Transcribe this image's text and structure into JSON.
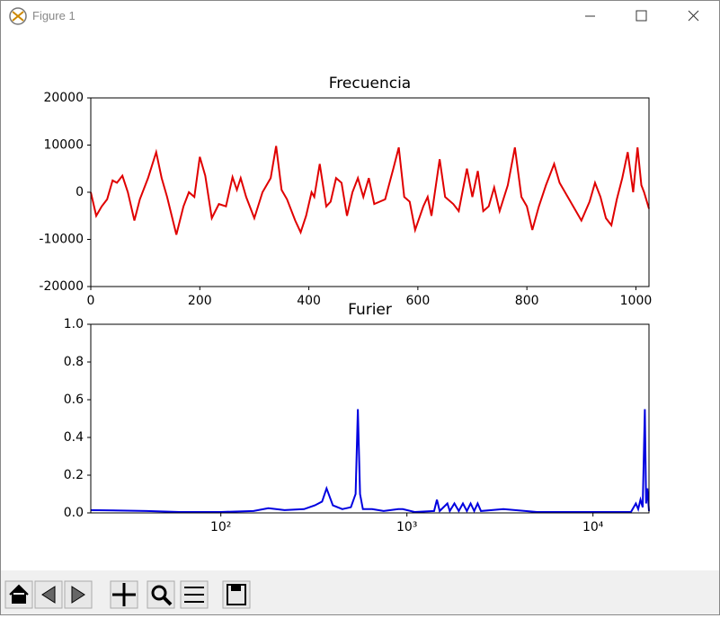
{
  "window": {
    "title": "Figure 1"
  },
  "chart_data": [
    {
      "type": "line",
      "title": "Frecuencia",
      "color": "#e00000",
      "x": [
        0,
        10,
        20,
        30,
        40,
        48,
        58,
        68,
        80,
        90,
        105,
        120,
        130,
        140,
        157,
        170,
        180,
        190,
        200,
        210,
        222,
        235,
        248,
        260,
        268,
        275,
        285,
        300,
        315,
        330,
        340,
        350,
        360,
        375,
        385,
        395,
        405,
        410,
        420,
        432,
        440,
        450,
        460,
        470,
        480,
        490,
        500,
        510,
        520,
        540,
        555,
        565,
        575,
        585,
        595,
        610,
        618,
        625,
        640,
        650,
        665,
        675,
        690,
        700,
        710,
        720,
        730,
        740,
        750,
        765,
        778,
        790,
        800,
        810,
        822,
        835,
        850,
        860,
        875,
        885,
        900,
        915,
        925,
        935,
        945,
        955,
        965,
        975,
        985,
        995,
        1003,
        1010,
        1015,
        1024
      ],
      "values": [
        0,
        -5000,
        -3000,
        -1500,
        2500,
        2000,
        3500,
        0,
        -6000,
        -1500,
        3000,
        8500,
        3000,
        -1000,
        -9000,
        -3000,
        0,
        -1000,
        7500,
        3500,
        -5500,
        -2500,
        -3000,
        3200,
        500,
        3000,
        -1000,
        -5500,
        0,
        3000,
        9800,
        500,
        -1500,
        -6000,
        -8500,
        -5000,
        0,
        -1000,
        6000,
        -3000,
        -2000,
        3000,
        2000,
        -5000,
        0,
        3000,
        -1000,
        3000,
        -2500,
        -1500,
        5000,
        9500,
        -1000,
        -2000,
        -8000,
        -3000,
        -1000,
        -5000,
        7000,
        -1000,
        -2500,
        -4000,
        5000,
        -1000,
        4500,
        -4000,
        -3000,
        1000,
        -4000,
        1500,
        9500,
        -1000,
        -3000,
        -8000,
        -3000,
        1500,
        6000,
        2000,
        -1000,
        -3000,
        -6000,
        -2000,
        2000,
        -1000,
        -5500,
        -7000,
        -1500,
        3000,
        8500,
        0,
        9500,
        1500,
        0,
        -3500
      ],
      "xlim": [
        0,
        1024
      ],
      "ylim": [
        -20000,
        20000
      ],
      "xticks": [
        0,
        200,
        400,
        600,
        800,
        1000
      ],
      "yticks": [
        -20000,
        -10000,
        0,
        10000,
        20000
      ]
    },
    {
      "type": "line",
      "title": "Furier",
      "color": "#0000e0",
      "xscale": "log",
      "x": [
        20,
        40,
        60,
        100,
        150,
        180,
        220,
        280,
        320,
        350,
        370,
        400,
        450,
        500,
        530,
        545,
        560,
        580,
        650,
        750,
        900,
        950,
        1100,
        1400,
        1450,
        1500,
        1650,
        1700,
        1800,
        1900,
        2000,
        2100,
        2200,
        2300,
        2400,
        2500,
        3300,
        5000,
        10000,
        16000,
        17000,
        17500,
        18000,
        18500,
        19000,
        19300,
        19600,
        20000
      ],
      "values": [
        0.015,
        0.01,
        0.005,
        0.005,
        0.01,
        0.025,
        0.015,
        0.02,
        0.04,
        0.06,
        0.13,
        0.04,
        0.02,
        0.03,
        0.1,
        0.55,
        0.1,
        0.02,
        0.02,
        0.01,
        0.02,
        0.02,
        0.005,
        0.01,
        0.07,
        0.01,
        0.05,
        0.01,
        0.05,
        0.01,
        0.05,
        0.01,
        0.05,
        0.01,
        0.05,
        0.01,
        0.02,
        0.005,
        0.005,
        0.005,
        0.05,
        0.02,
        0.07,
        0.03,
        0.55,
        0.05,
        0.13,
        0.01
      ],
      "xlim": [
        20,
        20000
      ],
      "ylim": [
        0,
        1
      ],
      "xticks": [
        {
          "value": 100,
          "label": "10²"
        },
        {
          "value": 1000,
          "label": "10³"
        },
        {
          "value": 10000,
          "label": "10⁴"
        }
      ],
      "yticks": [
        {
          "value": 0,
          "label": "0.0"
        },
        {
          "value": 0.2,
          "label": "0.2"
        },
        {
          "value": 0.4,
          "label": "0.4"
        },
        {
          "value": 0.6,
          "label": "0.6"
        },
        {
          "value": 0.8,
          "label": "0.8"
        },
        {
          "value": 1,
          "label": "1.0"
        }
      ]
    }
  ]
}
